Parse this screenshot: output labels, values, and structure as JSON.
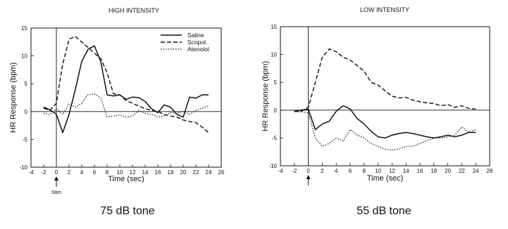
{
  "captions": [
    "75 dB tone",
    "55 dB tone"
  ],
  "chart_data": [
    {
      "type": "line",
      "title": "HIGH INTENSITY",
      "xlabel": "Time (sec)",
      "ylabel": "HR Response (bpm)",
      "xlim": [
        -4,
        26
      ],
      "ylim": [
        -10,
        15
      ],
      "x_ticks": [
        "-4",
        "-2",
        "0",
        "2",
        "4",
        "6",
        "8",
        "10",
        "12",
        "14",
        "16",
        "18",
        "20",
        "22",
        "24",
        "26"
      ],
      "y_ticks": [
        "-10",
        "-5",
        "0",
        "5",
        "10",
        "15"
      ],
      "stim_label": "Stim",
      "legend": "top-right",
      "series": [
        {
          "name": "Saline",
          "style": "solid",
          "points": [
            [
              -2,
              0.8
            ],
            [
              -1,
              0.3
            ],
            [
              0,
              -0.5
            ],
            [
              1,
              -3.8
            ],
            [
              2,
              -0.5
            ],
            [
              3,
              4
            ],
            [
              4,
              9
            ],
            [
              5,
              11.2
            ],
            [
              6,
              11.8
            ],
            [
              7,
              9
            ],
            [
              8,
              3
            ],
            [
              9,
              2.8
            ],
            [
              10,
              3
            ],
            [
              11,
              2.2
            ],
            [
              12,
              2.6
            ],
            [
              13,
              2.5
            ],
            [
              14,
              1.8
            ],
            [
              15,
              0.5
            ],
            [
              16,
              -0.2
            ],
            [
              17,
              1.2
            ],
            [
              18,
              0.8
            ],
            [
              19,
              -0.5
            ],
            [
              20,
              -1
            ],
            [
              21,
              2.6
            ],
            [
              22,
              2.4
            ],
            [
              23,
              3
            ],
            [
              24,
              3
            ]
          ]
        },
        {
          "name": "Scopol.",
          "style": "dashed",
          "points": [
            [
              -2,
              0.6
            ],
            [
              -1,
              0.2
            ],
            [
              0,
              1.5
            ],
            [
              1,
              8.5
            ],
            [
              2,
              13
            ],
            [
              3,
              13.5
            ],
            [
              4,
              12.5
            ],
            [
              5,
              11.5
            ],
            [
              6,
              10.5
            ],
            [
              7,
              9.5
            ],
            [
              8,
              7
            ],
            [
              9,
              3.2
            ],
            [
              10,
              3
            ],
            [
              11,
              2
            ],
            [
              12,
              1.5
            ],
            [
              13,
              1
            ],
            [
              14,
              0.5
            ],
            [
              15,
              0.2
            ],
            [
              16,
              0
            ],
            [
              17,
              -0.5
            ],
            [
              18,
              -0.8
            ],
            [
              19,
              -1
            ],
            [
              20,
              -1.5
            ],
            [
              21,
              -1.8
            ],
            [
              22,
              -2
            ],
            [
              23,
              -2.8
            ],
            [
              24,
              -3.8
            ]
          ]
        },
        {
          "name": "Atenolol",
          "style": "dotted",
          "points": [
            [
              -2,
              -0.3
            ],
            [
              -1,
              -0.5
            ],
            [
              0,
              0.5
            ],
            [
              1,
              -0.5
            ],
            [
              2,
              1.3
            ],
            [
              3,
              0.8
            ],
            [
              4,
              1.5
            ],
            [
              5,
              3
            ],
            [
              6,
              3.2
            ],
            [
              7,
              2.5
            ],
            [
              8,
              -1
            ],
            [
              9,
              -0.8
            ],
            [
              10,
              -0.6
            ],
            [
              11,
              -1
            ],
            [
              12,
              -0.8
            ],
            [
              13,
              0.2
            ],
            [
              14,
              -0.3
            ],
            [
              15,
              -0.5
            ],
            [
              16,
              -1
            ],
            [
              17,
              -0.8
            ],
            [
              18,
              -0.2
            ],
            [
              19,
              -0.3
            ],
            [
              20,
              0
            ],
            [
              21,
              -0.5
            ],
            [
              22,
              0.2
            ],
            [
              23,
              0.6
            ],
            [
              24,
              1
            ]
          ]
        }
      ]
    },
    {
      "type": "line",
      "title": "LOW INTENSITY",
      "xlabel": "Time (sec)",
      "ylabel": "HR Response (bpm)",
      "xlim": [
        -4,
        26
      ],
      "ylim": [
        -10,
        15
      ],
      "x_ticks": [
        "-4",
        "-2",
        "0",
        "2",
        "4",
        "6",
        "8",
        "10",
        "12",
        "14",
        "16",
        "18",
        "20",
        "22",
        "24",
        "26"
      ],
      "y_ticks": [
        "-10",
        "-5",
        "0",
        "5",
        "10",
        "15"
      ],
      "series": [
        {
          "name": "Saline",
          "style": "solid",
          "points": [
            [
              -2,
              -0.2
            ],
            [
              -1,
              0
            ],
            [
              0,
              0.2
            ],
            [
              1,
              -3.5
            ],
            [
              2,
              -2.5
            ],
            [
              3,
              -2
            ],
            [
              4,
              -0.2
            ],
            [
              5,
              0.8
            ],
            [
              6,
              0.2
            ],
            [
              7,
              -1.5
            ],
            [
              8,
              -2.5
            ],
            [
              9,
              -3.8
            ],
            [
              10,
              -4.8
            ],
            [
              11,
              -5
            ],
            [
              12,
              -4.5
            ],
            [
              13,
              -4.2
            ],
            [
              14,
              -4
            ],
            [
              15,
              -4.2
            ],
            [
              16,
              -4.5
            ],
            [
              17,
              -4.8
            ],
            [
              18,
              -5
            ],
            [
              19,
              -4.8
            ],
            [
              20,
              -4.5
            ],
            [
              21,
              -4.8
            ],
            [
              22,
              -4.5
            ],
            [
              23,
              -4
            ],
            [
              24,
              -4
            ]
          ]
        },
        {
          "name": "Scopol.",
          "style": "dashed",
          "points": [
            [
              -2,
              -0.2
            ],
            [
              -1,
              -0.2
            ],
            [
              0,
              0.5
            ],
            [
              1,
              5
            ],
            [
              2,
              9.5
            ],
            [
              3,
              11
            ],
            [
              4,
              10.5
            ],
            [
              5,
              9.5
            ],
            [
              6,
              9
            ],
            [
              7,
              8
            ],
            [
              8,
              7
            ],
            [
              9,
              5
            ],
            [
              10,
              4.5
            ],
            [
              11,
              3.5
            ],
            [
              12,
              2.5
            ],
            [
              13,
              2.2
            ],
            [
              14,
              2.3
            ],
            [
              15,
              1.8
            ],
            [
              16,
              1.5
            ],
            [
              17,
              1.3
            ],
            [
              18,
              1.2
            ],
            [
              19,
              0.8
            ],
            [
              20,
              1
            ],
            [
              21,
              0.5
            ],
            [
              22,
              0.8
            ],
            [
              23,
              0.3
            ],
            [
              24,
              0.2
            ]
          ]
        },
        {
          "name": "Atenolol",
          "style": "dotted",
          "points": [
            [
              -2,
              -0.3
            ],
            [
              -1,
              -0.3
            ],
            [
              0,
              -0.5
            ],
            [
              1,
              -5
            ],
            [
              2,
              -6.5
            ],
            [
              3,
              -6
            ],
            [
              4,
              -5
            ],
            [
              5,
              -5.5
            ],
            [
              6,
              -3.5
            ],
            [
              7,
              -4.5
            ],
            [
              8,
              -5
            ],
            [
              9,
              -6
            ],
            [
              10,
              -6.5
            ],
            [
              11,
              -7
            ],
            [
              12,
              -7.2
            ],
            [
              13,
              -7
            ],
            [
              14,
              -6.5
            ],
            [
              15,
              -6.5
            ],
            [
              16,
              -6
            ],
            [
              17,
              -5.5
            ],
            [
              18,
              -5
            ],
            [
              19,
              -5
            ],
            [
              20,
              -4.8
            ],
            [
              21,
              -4.5
            ],
            [
              22,
              -3
            ],
            [
              23,
              -4
            ],
            [
              24,
              -3.5
            ]
          ]
        }
      ]
    }
  ]
}
